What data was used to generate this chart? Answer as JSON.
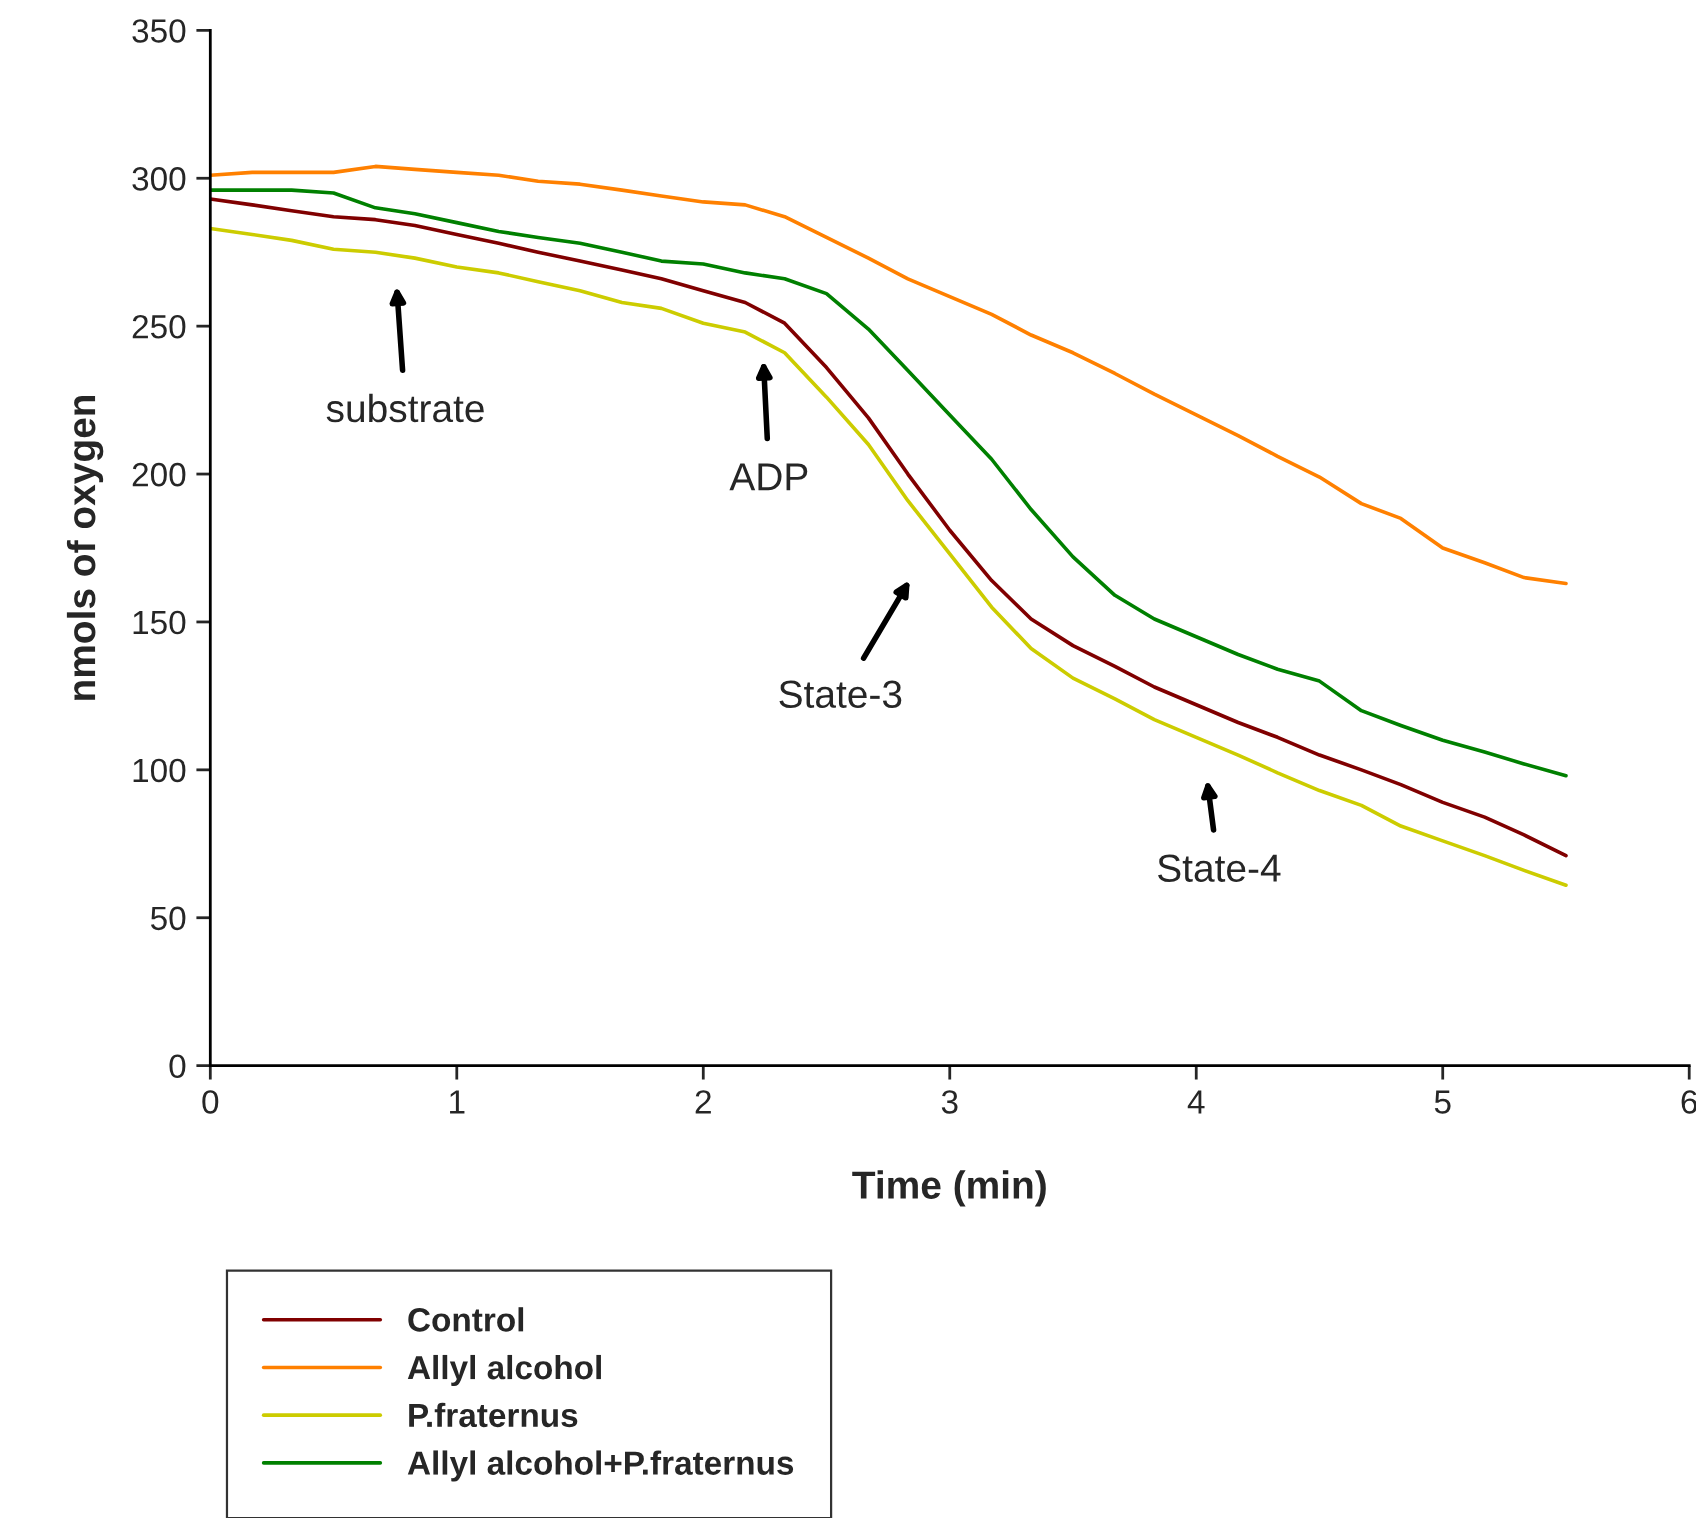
{
  "chart_data": {
    "type": "line",
    "xlabel": "Time (min)",
    "ylabel": "nmols of oxygen",
    "x": [
      0,
      0.17,
      0.33,
      0.5,
      0.67,
      0.83,
      1,
      1.17,
      1.33,
      1.5,
      1.67,
      1.83,
      2,
      2.17,
      2.33,
      2.5,
      2.67,
      2.83,
      3,
      3.17,
      3.33,
      3.5,
      3.67,
      3.83,
      4,
      4.17,
      4.33,
      4.5,
      4.67,
      4.83,
      5,
      5.17,
      5.33,
      5.5
    ],
    "series": [
      {
        "name": "Control",
        "color": "#800000",
        "values": [
          293,
          291,
          289,
          287,
          286,
          284,
          281,
          278,
          275,
          272,
          269,
          266,
          262,
          258,
          251,
          236,
          219,
          200,
          181,
          164,
          151,
          142,
          135,
          128,
          122,
          116,
          111,
          105,
          100,
          95,
          89,
          84,
          78,
          71
        ]
      },
      {
        "name": "Allyl alcohol",
        "color": "#ff8000",
        "values": [
          301,
          302,
          302,
          302,
          304,
          303,
          302,
          301,
          299,
          298,
          296,
          294,
          292,
          291,
          287,
          280,
          273,
          266,
          260,
          254,
          247,
          241,
          234,
          227,
          220,
          213,
          206,
          199,
          190,
          185,
          175,
          170,
          165,
          163
        ]
      },
      {
        "name": "P.fraternus",
        "color": "#cccc00",
        "values": [
          283,
          281,
          279,
          276,
          275,
          273,
          270,
          268,
          265,
          262,
          258,
          256,
          251,
          248,
          241,
          226,
          210,
          191,
          173,
          155,
          141,
          131,
          124,
          117,
          111,
          105,
          99,
          93,
          88,
          81,
          76,
          71,
          66,
          61
        ]
      },
      {
        "name": "Allyl alcohol+P.fraternus",
        "color": "#008000",
        "values": [
          296,
          296,
          296,
          295,
          290,
          288,
          285,
          282,
          280,
          278,
          275,
          272,
          271,
          268,
          266,
          261,
          249,
          235,
          220,
          205,
          188,
          172,
          159,
          151,
          145,
          139,
          134,
          130,
          120,
          115,
          110,
          106,
          102,
          98
        ]
      }
    ],
    "xlim": [
      0,
      6
    ],
    "xticks": [
      0,
      1,
      2,
      3,
      4,
      5,
      6
    ],
    "ylim": [
      0,
      350
    ],
    "yticks": [
      0,
      50,
      100,
      150,
      200,
      250,
      300,
      350
    ],
    "annotations": [
      "substrate",
      "ADP",
      "State-3",
      "State-4"
    ],
    "legend": "bottom left",
    "grid": false,
    "marker": "none",
    "line_style": "solid"
  }
}
